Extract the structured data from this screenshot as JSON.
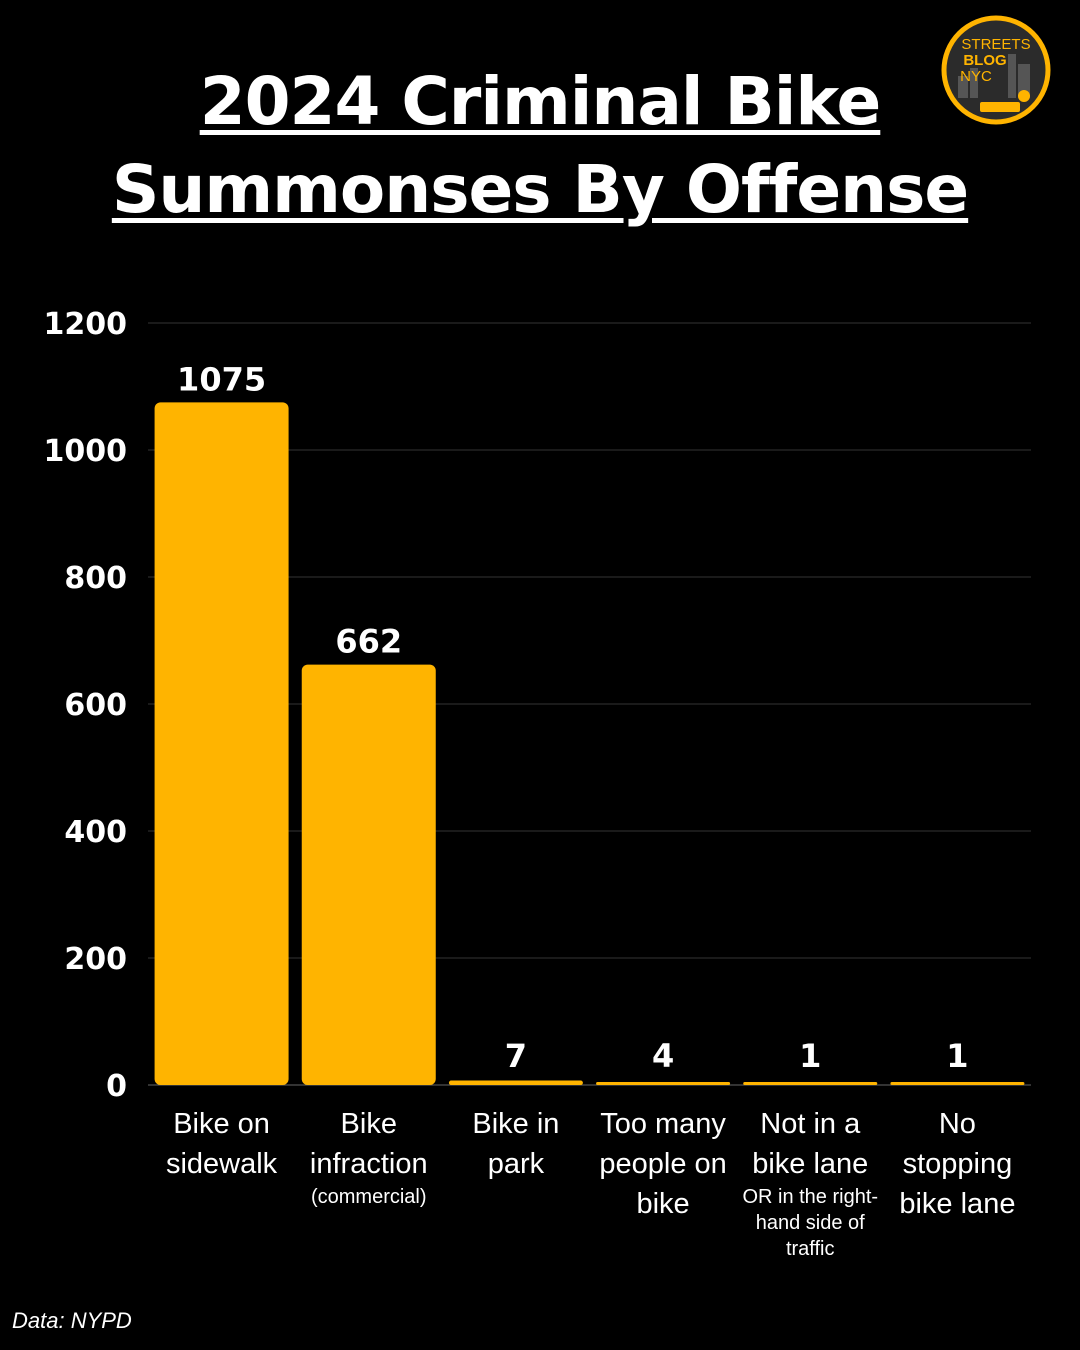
{
  "header": {
    "title_line1": "2024 Criminal Bike",
    "title_line2": "Summonses By Offense"
  },
  "logo": {
    "line1": "STREETS",
    "line2": "BLOG",
    "line3": "NYC",
    "ring_color": "#FFB400",
    "bg_color": "#2b2b2b"
  },
  "chart_data": {
    "type": "bar",
    "title": "2024 Criminal Bike Summonses By Offense",
    "categories": [
      {
        "label": "Bike on sidewalk",
        "sublabel": ""
      },
      {
        "label": "Bike infraction",
        "sublabel": "(commercial)"
      },
      {
        "label": "Bike in park",
        "sublabel": ""
      },
      {
        "label": "Too many people on bike",
        "sublabel": ""
      },
      {
        "label": "Not in a bike lane",
        "sublabel": "OR in the right-hand side of traffic"
      },
      {
        "label": "No stopping bike lane",
        "sublabel": ""
      }
    ],
    "values": [
      1075,
      662,
      7,
      4,
      1,
      1
    ],
    "ylim": [
      0,
      1200
    ],
    "yticks": [
      0,
      200,
      400,
      600,
      800,
      1000,
      1200
    ],
    "grid": true,
    "bar_color": "#FFB400"
  },
  "source": "Data: NYPD"
}
